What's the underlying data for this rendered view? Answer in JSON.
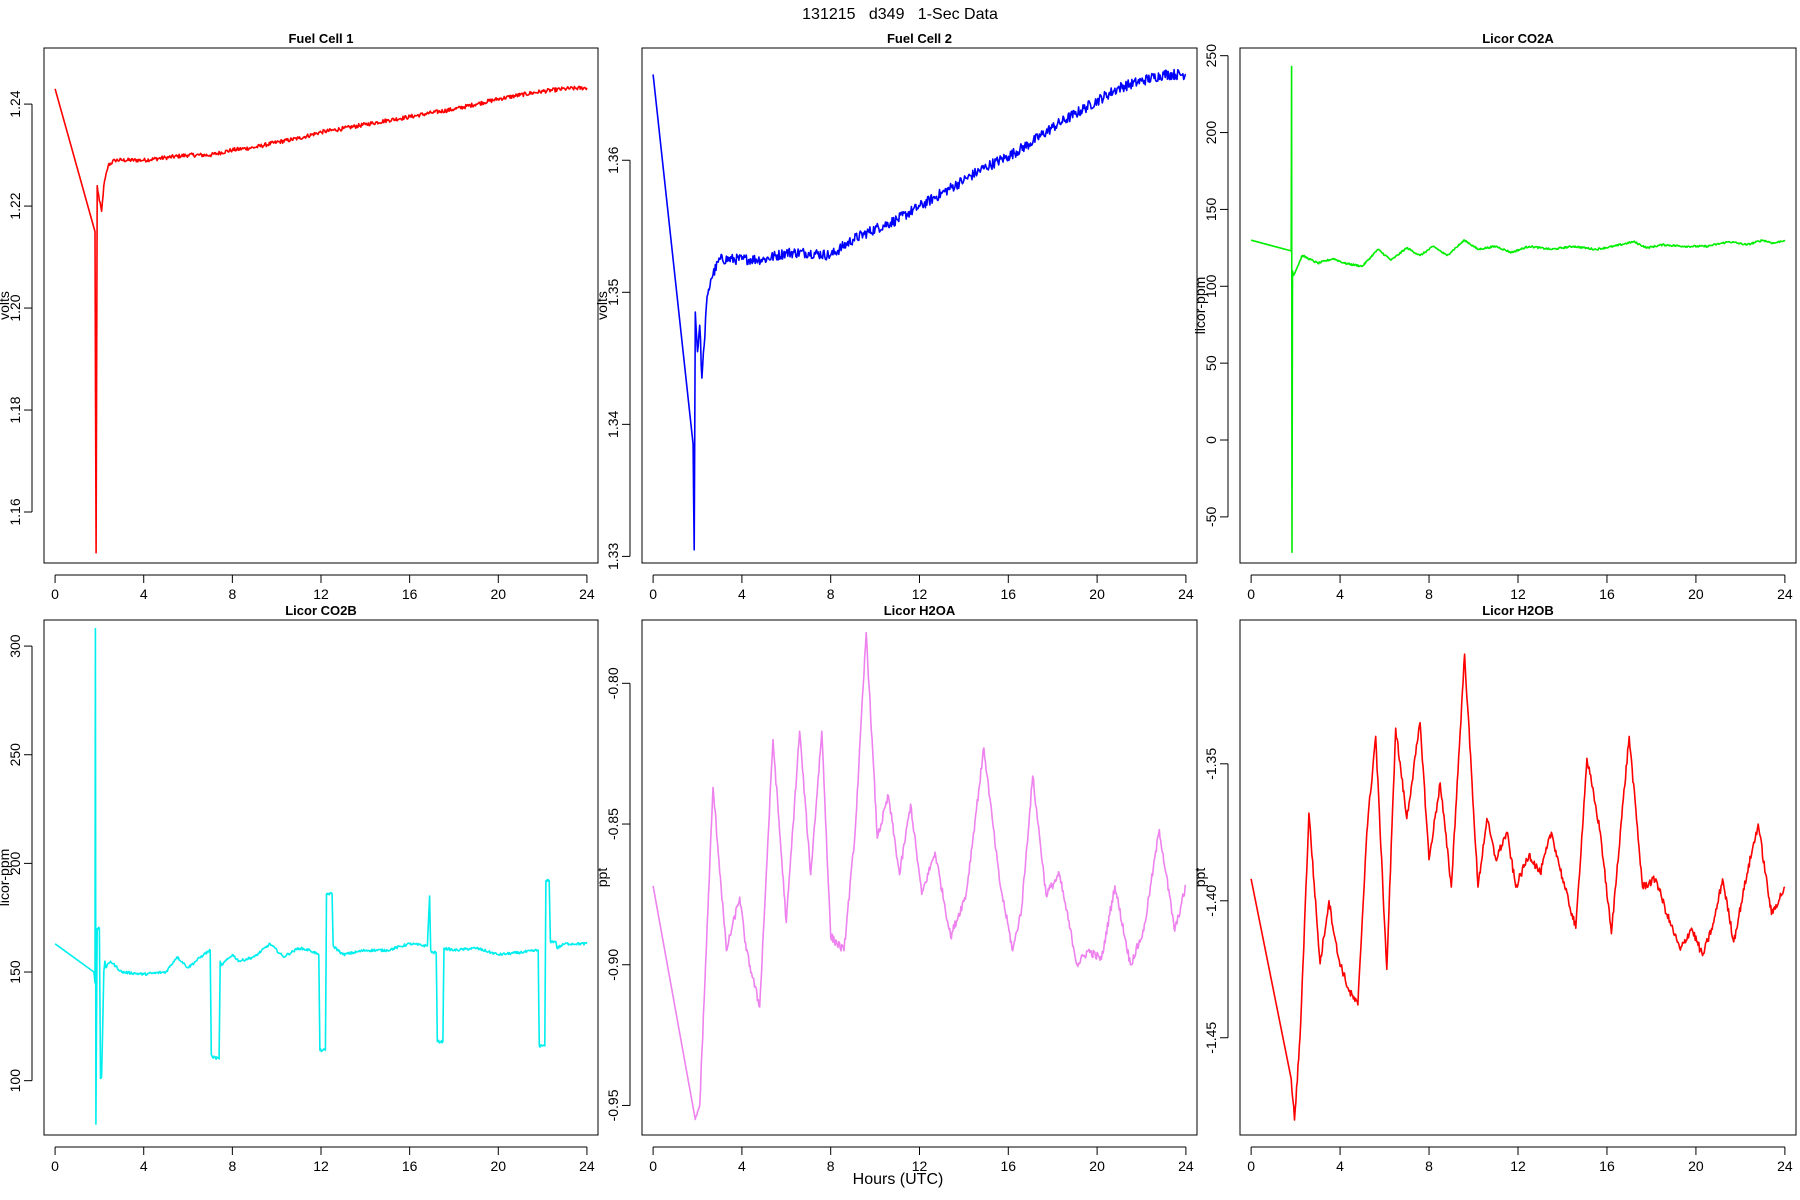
{
  "figure": {
    "title": "131215   d349   1-Sec Data",
    "xlabel": "Hours (UTC)"
  },
  "chart_data": [
    {
      "type": "line",
      "title": "Fuel Cell 1",
      "ylabel": "volts",
      "color": "#ff0000",
      "xlim": [
        -0.5,
        24.5
      ],
      "ylim": [
        1.15,
        1.251
      ],
      "xticks": [
        0,
        4,
        8,
        12,
        16,
        20,
        24
      ],
      "yticks": [
        1.16,
        1.18,
        1.2,
        1.22,
        1.24
      ],
      "ytick_labels": [
        "1.16",
        "1.18",
        "1.20",
        "1.22",
        "1.24"
      ],
      "noise": 0.0004,
      "x": [
        0,
        1.8,
        1.85,
        1.9,
        2.0,
        2.1,
        2.2,
        2.4,
        2.7,
        3,
        4,
        5,
        6,
        7,
        8,
        9,
        10,
        11,
        12,
        13,
        14,
        15,
        16,
        17,
        18,
        19,
        20,
        21,
        22,
        23,
        24
      ],
      "y": [
        1.243,
        1.215,
        1.152,
        1.224,
        1.221,
        1.219,
        1.224,
        1.228,
        1.229,
        1.229,
        1.229,
        1.2295,
        1.23,
        1.23,
        1.231,
        1.2315,
        1.2325,
        1.2333,
        1.2345,
        1.2352,
        1.236,
        1.2368,
        1.2375,
        1.2383,
        1.239,
        1.24,
        1.241,
        1.2418,
        1.2425,
        1.243,
        1.2432
      ]
    },
    {
      "type": "line",
      "title": "Fuel Cell 2",
      "ylabel": "volts",
      "color": "#0000ff",
      "xlim": [
        -0.5,
        24.5
      ],
      "ylim": [
        1.3295,
        1.3685
      ],
      "xticks": [
        0,
        4,
        8,
        12,
        16,
        20,
        24
      ],
      "yticks": [
        1.33,
        1.34,
        1.35,
        1.36
      ],
      "ytick_labels": [
        "1.33",
        "1.34",
        "1.35",
        "1.36"
      ],
      "noise": 0.0004,
      "x": [
        0,
        1.8,
        1.85,
        1.9,
        2.0,
        2.1,
        2.2,
        2.3,
        2.4,
        2.6,
        3,
        4,
        5,
        6,
        7,
        8,
        9,
        10,
        11,
        12,
        13,
        14,
        15,
        16,
        17,
        18,
        19,
        20,
        21,
        22,
        23,
        24
      ],
      "y": [
        1.3665,
        1.3385,
        1.3305,
        1.3485,
        1.3455,
        1.3475,
        1.3435,
        1.346,
        1.349,
        1.351,
        1.3525,
        1.3525,
        1.3525,
        1.353,
        1.353,
        1.3528,
        1.354,
        1.3548,
        1.3555,
        1.3565,
        1.3575,
        1.3585,
        1.3595,
        1.3603,
        1.3613,
        1.3625,
        1.3635,
        1.3645,
        1.3655,
        1.366,
        1.3665,
        1.3665
      ]
    },
    {
      "type": "line",
      "title": "Licor CO2A",
      "ylabel": "licor-ppm",
      "color": "#00ee00",
      "xlim": [
        -0.5,
        24.5
      ],
      "ylim": [
        -80,
        255
      ],
      "xticks": [
        0,
        4,
        8,
        12,
        16,
        20,
        24
      ],
      "yticks": [
        -50,
        0,
        50,
        100,
        150,
        200,
        250
      ],
      "ytick_labels": [
        "-50",
        "0",
        "50",
        "100",
        "150",
        "200",
        "250"
      ],
      "noise": 0.6,
      "x": [
        0,
        1.8,
        1.82,
        1.84,
        1.86,
        1.9,
        2.0,
        2.3,
        3,
        3.7,
        4.2,
        5.0,
        5.7,
        6.3,
        7,
        7.6,
        8.2,
        8.8,
        9.6,
        10.2,
        11,
        11.7,
        12.5,
        13.5,
        14.5,
        15.5,
        16.3,
        17.2,
        17.8,
        18.5,
        19.5,
        20.5,
        21.5,
        22.3,
        23,
        23.5,
        24
      ],
      "y": [
        130,
        123,
        243,
        -73,
        110,
        107,
        110,
        120,
        115,
        118,
        115,
        113,
        124,
        117,
        125,
        120,
        126,
        120,
        130,
        124,
        126,
        122,
        126,
        124,
        126,
        124,
        126,
        129,
        125,
        127,
        126,
        126,
        129,
        127,
        130,
        128,
        130
      ]
    },
    {
      "type": "line",
      "title": "Licor CO2B",
      "ylabel": "licor-ppm",
      "color": "#00eeee",
      "xlim": [
        -0.5,
        24.5
      ],
      "ylim": [
        75,
        312
      ],
      "xticks": [
        0,
        4,
        8,
        12,
        16,
        20,
        24
      ],
      "yticks": [
        100,
        150,
        200,
        250,
        300
      ],
      "ytick_labels": [
        "100",
        "150",
        "200",
        "250",
        "300"
      ],
      "noise": 0.6,
      "x": [
        0,
        1.75,
        1.8,
        1.82,
        1.84,
        1.9,
        2.0,
        2.05,
        2.1,
        2.2,
        2.25,
        2.3,
        2.5,
        3,
        4,
        5,
        5.5,
        6,
        6.7,
        7.0,
        7.05,
        7.1,
        7.4,
        7.45,
        7.5,
        8,
        8.3,
        9,
        9.7,
        10.3,
        11,
        11.5,
        11.9,
        11.95,
        12.2,
        12.25,
        12.5,
        12.55,
        13,
        14,
        15,
        16,
        16.8,
        16.9,
        16.95,
        17.0,
        17.2,
        17.25,
        17.5,
        17.55,
        18,
        19,
        20,
        21,
        21.8,
        21.85,
        22.1,
        22.15,
        22.3,
        22.35,
        22.6,
        22.65,
        23,
        24
      ],
      "y": [
        163,
        150,
        145,
        308,
        80,
        170,
        170,
        101,
        102,
        150,
        155,
        152,
        155,
        150,
        149,
        150,
        157,
        152,
        158,
        160,
        112,
        111,
        110,
        155,
        153,
        158,
        155,
        157,
        163,
        157,
        161,
        160,
        158,
        114,
        114,
        186,
        186,
        162,
        158,
        160,
        160,
        163,
        162,
        185,
        160,
        159,
        159,
        118,
        118,
        161,
        160,
        161,
        158,
        159,
        160,
        116,
        116,
        192,
        192,
        164,
        164,
        161,
        163,
        163
      ]
    },
    {
      "type": "line",
      "title": "Licor H2OA",
      "ylabel": "ppt",
      "color": "#ee82ee",
      "xlim": [
        -0.5,
        24.5
      ],
      "ylim": [
        -0.9605,
        -0.7775
      ],
      "xticks": [
        0,
        4,
        8,
        12,
        16,
        20,
        24
      ],
      "yticks": [
        -0.95,
        -0.9,
        -0.85,
        -0.8
      ],
      "ytick_labels": [
        "-0.95",
        "-0.90",
        "-0.85",
        "-0.80"
      ],
      "noise": 0.0015,
      "x": [
        0,
        1.9,
        2.1,
        2.7,
        3.3,
        3.9,
        4.2,
        4.8,
        5.4,
        6.0,
        6.6,
        7.1,
        7.6,
        8.0,
        8.6,
        9.1,
        9.6,
        10.1,
        10.6,
        11.1,
        11.6,
        12.1,
        12.7,
        13.4,
        14.1,
        14.9,
        15.6,
        16.2,
        16.6,
        17.1,
        17.7,
        18.3,
        19.1,
        19.6,
        20.2,
        20.8,
        21.5,
        22.1,
        22.8,
        23.5,
        24
      ],
      "y": [
        -0.872,
        -0.955,
        -0.95,
        -0.837,
        -0.895,
        -0.876,
        -0.895,
        -0.915,
        -0.82,
        -0.885,
        -0.817,
        -0.868,
        -0.817,
        -0.89,
        -0.895,
        -0.853,
        -0.782,
        -0.855,
        -0.84,
        -0.868,
        -0.843,
        -0.875,
        -0.86,
        -0.89,
        -0.875,
        -0.823,
        -0.87,
        -0.895,
        -0.88,
        -0.833,
        -0.875,
        -0.868,
        -0.9,
        -0.895,
        -0.898,
        -0.872,
        -0.9,
        -0.888,
        -0.852,
        -0.888,
        -0.872
      ]
    },
    {
      "type": "line",
      "title": "Licor H2OB",
      "ylabel": "ppt",
      "color": "#ff0000",
      "xlim": [
        -0.5,
        24.5
      ],
      "ylim": [
        -1.4855,
        -1.2975
      ],
      "xticks": [
        0,
        4,
        8,
        12,
        16,
        20,
        24
      ],
      "yticks": [
        -1.45,
        -1.4,
        -1.35
      ],
      "ytick_labels": [
        "-1.45",
        "-1.40",
        "-1.35"
      ],
      "noise": 0.0015,
      "x": [
        0,
        1.8,
        1.95,
        2.2,
        2.6,
        3.1,
        3.5,
        3.9,
        4.4,
        4.8,
        5.2,
        5.6,
        6.1,
        6.5,
        7.0,
        7.6,
        8.0,
        8.5,
        9.0,
        9.6,
        10.2,
        10.6,
        11.0,
        11.5,
        11.9,
        12.5,
        13.0,
        13.5,
        14.1,
        14.6,
        15.1,
        15.7,
        16.2,
        16.6,
        17.0,
        17.6,
        18.2,
        18.7,
        19.3,
        19.8,
        20.3,
        20.8,
        21.2,
        21.7,
        22.3,
        22.8,
        23.4,
        24
      ],
      "y": [
        -1.392,
        -1.465,
        -1.48,
        -1.45,
        -1.368,
        -1.423,
        -1.4,
        -1.42,
        -1.433,
        -1.438,
        -1.375,
        -1.34,
        -1.425,
        -1.337,
        -1.37,
        -1.335,
        -1.385,
        -1.357,
        -1.395,
        -1.31,
        -1.395,
        -1.37,
        -1.385,
        -1.375,
        -1.395,
        -1.383,
        -1.39,
        -1.375,
        -1.395,
        -1.41,
        -1.348,
        -1.375,
        -1.412,
        -1.375,
        -1.34,
        -1.395,
        -1.392,
        -1.405,
        -1.418,
        -1.41,
        -1.42,
        -1.408,
        -1.392,
        -1.415,
        -1.39,
        -1.372,
        -1.405,
        -1.395
      ]
    }
  ]
}
